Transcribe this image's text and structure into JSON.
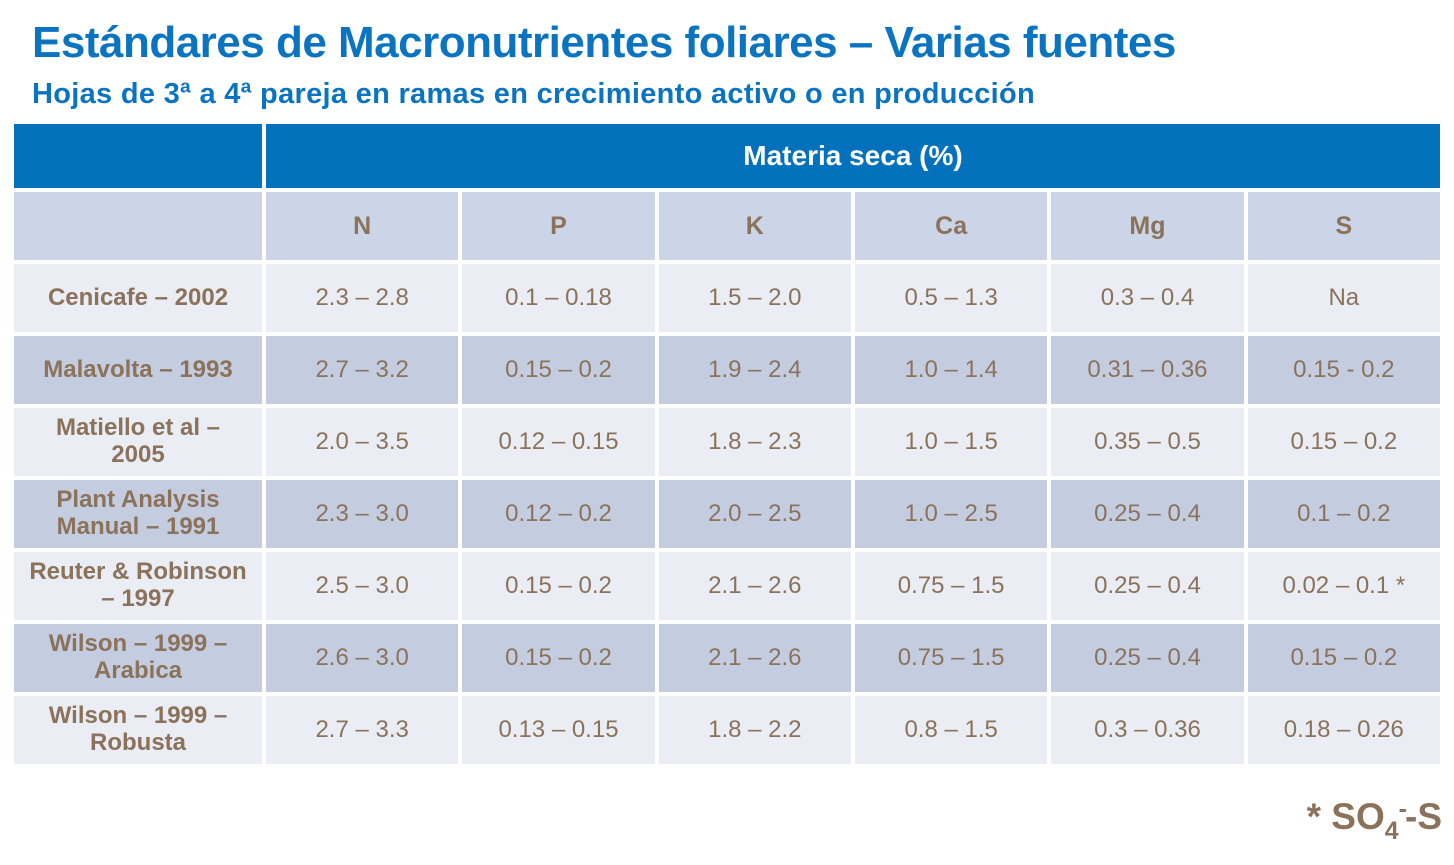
{
  "slide": {
    "title": "Estándares de Macronutrientes foliares – Varias fuentes",
    "subtitle": "Hojas de 3ª a 4ª pareja en ramas en crecimiento activo o en producción"
  },
  "table": {
    "merged_header": "Materia seca (%)",
    "columns": [
      "N",
      "P",
      "K",
      "Ca",
      "Mg",
      "S"
    ],
    "rows": [
      {
        "label": "Cenicafe – 2002",
        "values": [
          "2.3 – 2.8",
          "0.1 – 0.18",
          "1.5 – 2.0",
          "0.5 – 1.3",
          "0.3 – 0.4",
          "Na"
        ]
      },
      {
        "label": "Malavolta – 1993",
        "values": [
          "2.7 – 3.2",
          "0.15 – 0.2",
          "1.9 – 2.4",
          "1.0 – 1.4",
          "0.31 – 0.36",
          "0.15 - 0.2"
        ]
      },
      {
        "label": "Matiello et al – 2005",
        "values": [
          "2.0 – 3.5",
          "0.12 – 0.15",
          "1.8 – 2.3",
          "1.0 – 1.5",
          "0.35 – 0.5",
          "0.15 – 0.2"
        ]
      },
      {
        "label": "Plant Analysis Manual – 1991",
        "values": [
          "2.3 – 3.0",
          "0.12 – 0.2",
          "2.0 – 2.5",
          "1.0 – 2.5",
          "0.25 – 0.4",
          "0.1 – 0.2"
        ]
      },
      {
        "label": "Reuter & Robinson – 1997",
        "values": [
          "2.5 – 3.0",
          "0.15 – 0.2",
          "2.1 – 2.6",
          "0.75 – 1.5",
          "0.25 – 0.4",
          "0.02 – 0.1 *"
        ]
      },
      {
        "label": "Wilson – 1999 – Arabica",
        "values": [
          "2.6 – 3.0",
          "0.15 – 0.2",
          "2.1 – 2.6",
          "0.75 – 1.5",
          "0.25 – 0.4",
          "0.15 – 0.2"
        ]
      },
      {
        "label": "Wilson – 1999 – Robusta",
        "values": [
          "2.7 – 3.3",
          "0.13 – 0.15",
          "1.8 – 2.2",
          "0.8 – 1.5",
          "0.3 – 0.36",
          "0.18 – 0.26"
        ]
      }
    ]
  },
  "footnote": {
    "prefix": "* SO",
    "subscript": "4",
    "superscript": "-",
    "suffix": "-S"
  },
  "colors": {
    "accent_blue": "#0B74C0",
    "merged_header_bg": "#0471BD",
    "subheader_bg": "#CBD5E7",
    "row_light_bg": "#EAEDF4",
    "row_dark_bg": "#C4CDE0",
    "text_brown": "#8B725A"
  }
}
